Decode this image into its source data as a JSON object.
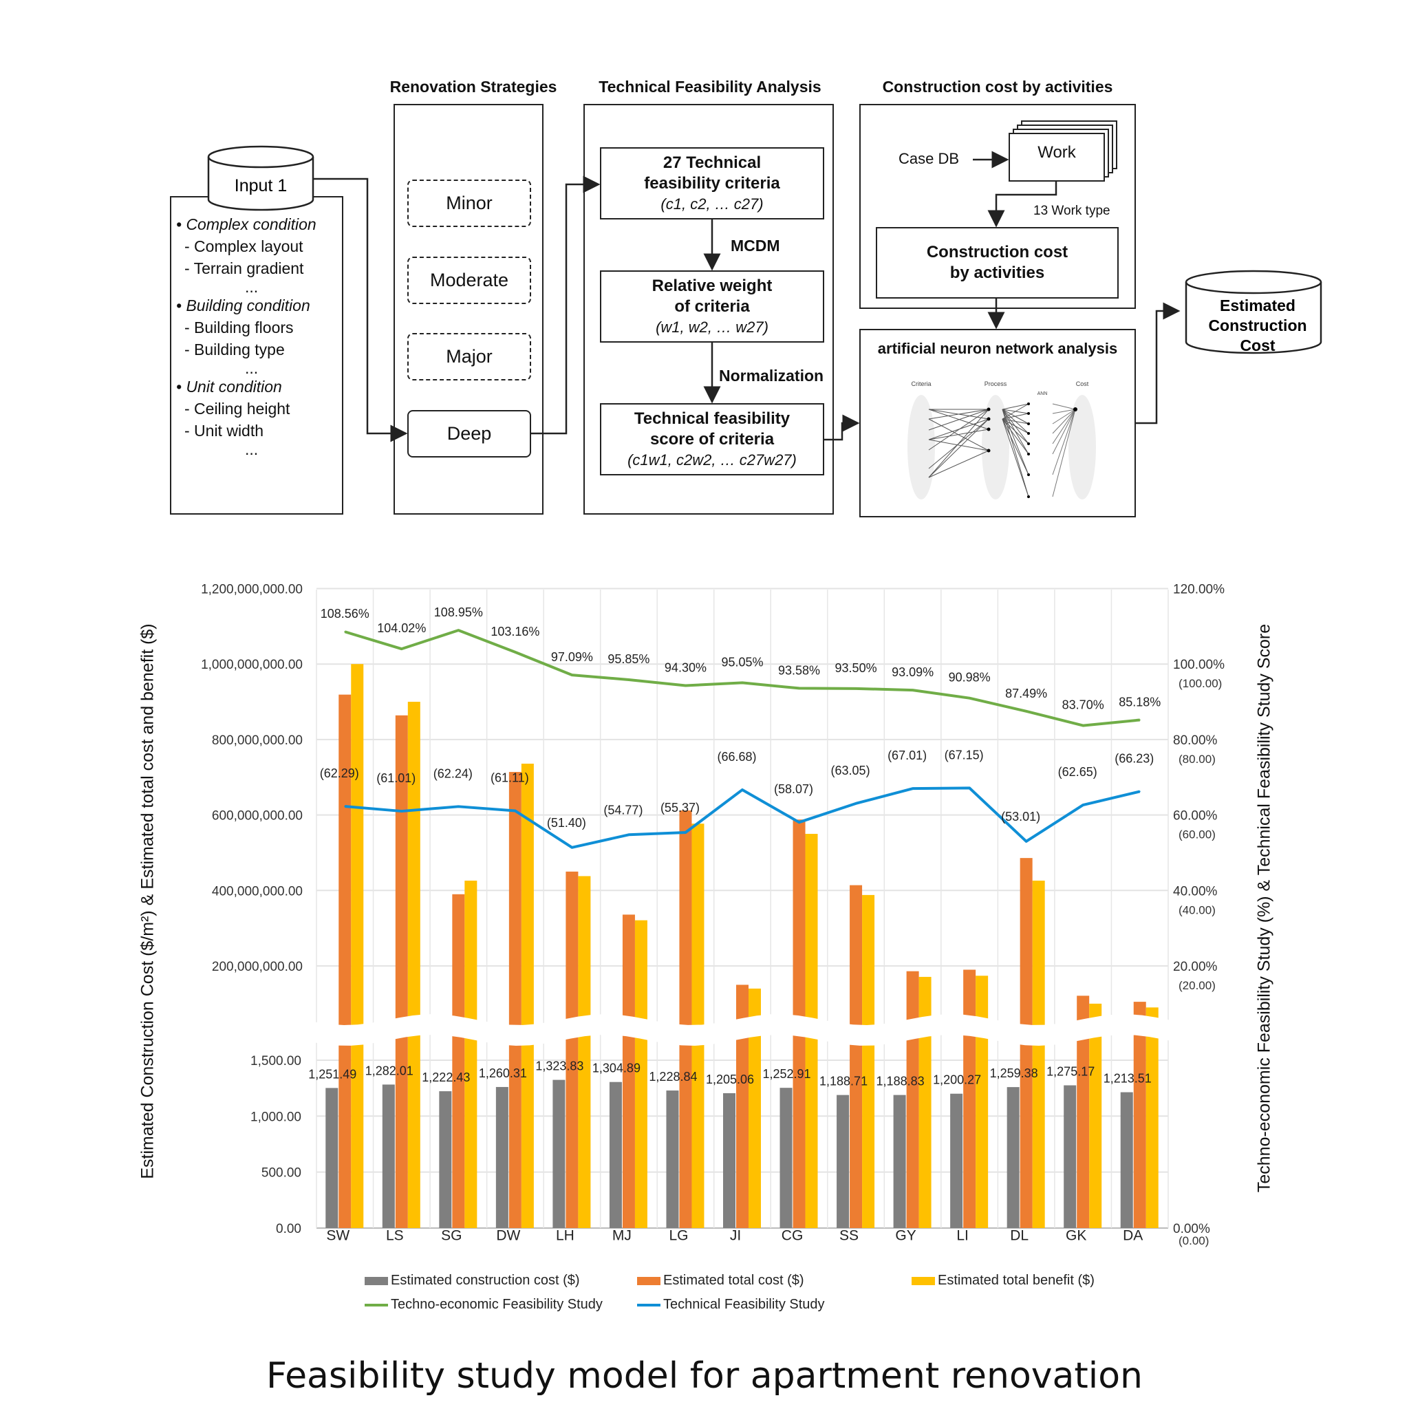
{
  "diagram": {
    "headers": {
      "renovation": "Renovation Strategies",
      "technical": "Technical Feasibility Analysis",
      "construction": "Construction cost by activities"
    },
    "input": {
      "title": "Input 1",
      "items": [
        {
          "kind": "b",
          "text": "• Complex condition"
        },
        {
          "kind": "d",
          "text": "- Complex layout"
        },
        {
          "kind": "d",
          "text": "- Terrain gradient"
        },
        {
          "kind": "e",
          "text": "..."
        },
        {
          "kind": "b",
          "text": "• Building condition"
        },
        {
          "kind": "d",
          "text": "- Building floors"
        },
        {
          "kind": "d",
          "text": "- Building type"
        },
        {
          "kind": "e",
          "text": "..."
        },
        {
          "kind": "b",
          "text": "• Unit condition"
        },
        {
          "kind": "d",
          "text": "- Ceiling height"
        },
        {
          "kind": "d",
          "text": "- Unit width"
        },
        {
          "kind": "e",
          "text": "..."
        }
      ]
    },
    "strategies": [
      "Minor",
      "Moderate",
      "Major",
      "Deep"
    ],
    "criteria_box": {
      "line1": "27 Technical",
      "line2": "feasibility criteria",
      "sub": "(c1, c2, … c27)"
    },
    "mcdm_label": "MCDM",
    "weight_box": {
      "line1": "Relative weight",
      "line2": "of criteria",
      "sub": "(w1, w2, … w27)"
    },
    "normalization_label": "Normalization",
    "score_box": {
      "line1": "Technical feasibility",
      "line2": "score of criteria",
      "sub": "(c1w1, c2w2, … c27w27)"
    },
    "case_db": "Case DB",
    "work": "Work",
    "work_type": "13 Work type",
    "cc_box": {
      "line1": "Construction cost",
      "line2": "by activities"
    },
    "ann_title": "artificial neuron network analysis",
    "ann_figure_labels": [
      "Criteria",
      "Process",
      "ANN",
      "Cost"
    ],
    "output": {
      "line1": "Estimated",
      "line2": "Construction",
      "line3": "Cost"
    }
  },
  "chart_data": {
    "type": "bar",
    "categories": [
      "SW",
      "LS",
      "SG",
      "DW",
      "LH",
      "MJ",
      "LG",
      "JI",
      "CG",
      "SS",
      "GY",
      "LI",
      "DL",
      "GK",
      "DA"
    ],
    "ylabel_left": "Estimated Construction Cost ($/m²)  & Estimated total cost and benefit ($)",
    "ylabel_right": "Techno-economic Feasibility Study (%) & Technical Feasibility Study Score",
    "left_upper_ticks": [
      "200,000,000.00",
      "400,000,000.00",
      "600,000,000.00",
      "800,000,000.00",
      "1,000,000,000.00",
      "1,200,000,000.00"
    ],
    "left_upper_tick_values": [
      200000000,
      400000000,
      600000000,
      800000000,
      1000000000,
      1200000000
    ],
    "left_lower_ticks": [
      "0.00",
      "500.00",
      "1,000.00",
      "1,500.00"
    ],
    "left_lower_tick_values": [
      0,
      500,
      1000,
      1500
    ],
    "right_ticks": [
      "0.00%",
      "20.00%",
      "40.00%",
      "60.00%",
      "80.00%",
      "100.00%",
      "120.00%"
    ],
    "right_ticks_secondary": [
      "(0.00)",
      "(20.00)",
      "(40.00)",
      "(60.00)",
      "(80.00)",
      "(100.00)",
      ""
    ],
    "right_tick_values": [
      0,
      20,
      40,
      60,
      80,
      100,
      120
    ],
    "axis_break": true,
    "grid": true,
    "series": [
      {
        "name": "Estimated construction cost ($)",
        "kind": "bar",
        "axis": "left-lower",
        "color": "#7f7f7f",
        "values": [
          1251.49,
          1282.01,
          1222.43,
          1260.31,
          1323.83,
          1304.89,
          1228.84,
          1205.06,
          1252.91,
          1188.71,
          1188.83,
          1200.27,
          1259.38,
          1275.17,
          1213.51
        ],
        "labels": [
          "1,251.49",
          "1,282.01",
          "1,222.43",
          "1,260.31",
          "1,323.83",
          "1,304.89",
          "1,228.84",
          "1,205.06",
          "1,252.91",
          "1,188.71",
          "1,188.83",
          "1,200.27",
          "1,259.38",
          "1,275.17",
          "1,213.51"
        ]
      },
      {
        "name": "Estimated total cost ($)",
        "kind": "bar",
        "axis": "left-upper",
        "color": "#ed7d31",
        "values": [
          919000000,
          864000000,
          390000000,
          714000000,
          450000000,
          336000000,
          612000000,
          150000000,
          588000000,
          414000000,
          186000000,
          190000000,
          486000000,
          121000000,
          105000000
        ]
      },
      {
        "name": "Estimated total benefit ($)",
        "kind": "bar",
        "axis": "left-upper",
        "color": "#ffc000",
        "values": [
          1000000000,
          900000000,
          426000000,
          736000000,
          438000000,
          321000000,
          577000000,
          140000000,
          550000000,
          388000000,
          171000000,
          174000000,
          426000000,
          100000000,
          90000000
        ]
      },
      {
        "name": "Techno-economic Feasibility Study",
        "kind": "line",
        "axis": "right",
        "color": "#70ad47",
        "values": [
          108.56,
          104.02,
          108.95,
          103.16,
          97.09,
          95.85,
          94.3,
          95.05,
          93.58,
          93.5,
          93.09,
          90.98,
          87.49,
          83.7,
          85.18
        ],
        "labels": [
          "108.56%",
          "104.02%",
          "108.95%",
          "103.16%",
          "97.09%",
          "95.85%",
          "94.30%",
          "95.05%",
          "93.58%",
          "93.50%",
          "93.09%",
          "90.98%",
          "87.49%",
          "83.70%",
          "85.18%"
        ]
      },
      {
        "name": "Technical Feasibility Study",
        "kind": "line",
        "axis": "right",
        "color": "#0f8fd6",
        "values": [
          62.29,
          61.01,
          62.24,
          61.11,
          51.4,
          54.77,
          55.37,
          66.68,
          58.07,
          63.05,
          67.01,
          67.15,
          53.01,
          62.65,
          66.23
        ],
        "labels": [
          "(62.29)",
          "(61.01)",
          "(62.24)",
          "(61.11)",
          "(51.40)",
          "(54.77)",
          "(55.37)",
          "(66.68)",
          "(58.07)",
          "(63.05)",
          "(67.01)",
          "(67.15)",
          "(53.01)",
          "(62.65)",
          "(66.23)"
        ]
      }
    ],
    "legend_placement": "bottom"
  },
  "caption": "Feasibility study model for apartment renovation"
}
